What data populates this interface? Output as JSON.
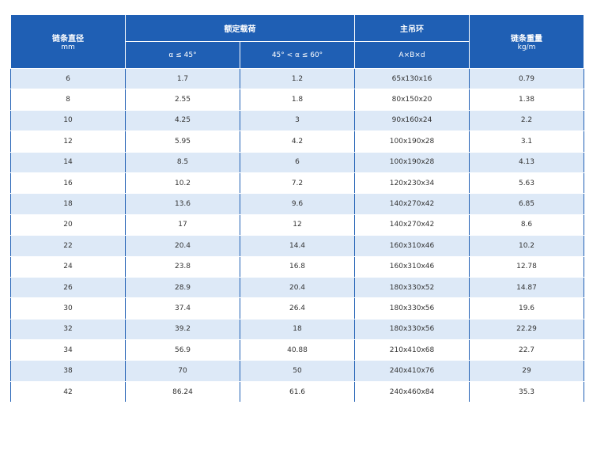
{
  "header": {
    "diameter": {
      "label": "链条直径",
      "unit": "mm"
    },
    "rated_load": {
      "label": "额定载荷",
      "sub": [
        "α ≤ 45°",
        "45° < α ≤ 60°"
      ]
    },
    "ring": {
      "label": "主吊环",
      "sub": "A×B×d"
    },
    "weight": {
      "label": "链条重量",
      "unit": "kg/m"
    }
  },
  "table": {
    "rows": [
      [
        6,
        1.7,
        1.2,
        "65x130x16",
        0.79
      ],
      [
        8,
        2.55,
        1.8,
        "80x150x20",
        1.38
      ],
      [
        10,
        4.25,
        3,
        "90x160x24",
        2.2
      ],
      [
        12,
        5.95,
        4.2,
        "100x190x28",
        3.1
      ],
      [
        14,
        8.5,
        6,
        "100x190x28",
        4.13
      ],
      [
        16,
        10.2,
        7.2,
        "120x230x34",
        5.63
      ],
      [
        18,
        13.6,
        9.6,
        "140x270x42",
        6.85
      ],
      [
        20,
        17,
        12,
        "140x270x42",
        8.6
      ],
      [
        22,
        20.4,
        14.4,
        "160x310x46",
        10.2
      ],
      [
        24,
        23.8,
        16.8,
        "160x310x46",
        12.78
      ],
      [
        26,
        28.9,
        20.4,
        "180x330x52",
        14.87
      ],
      [
        30,
        37.4,
        26.4,
        "180x330x56",
        19.6
      ],
      [
        32,
        39.2,
        18,
        "180x330x56",
        22.29
      ],
      [
        34,
        56.9,
        40.88,
        "210x410x68",
        22.7
      ],
      [
        38,
        70,
        50,
        "240x410x76",
        29
      ],
      [
        42,
        86.24,
        61.6,
        "240x460x84",
        35.3
      ]
    ]
  }
}
